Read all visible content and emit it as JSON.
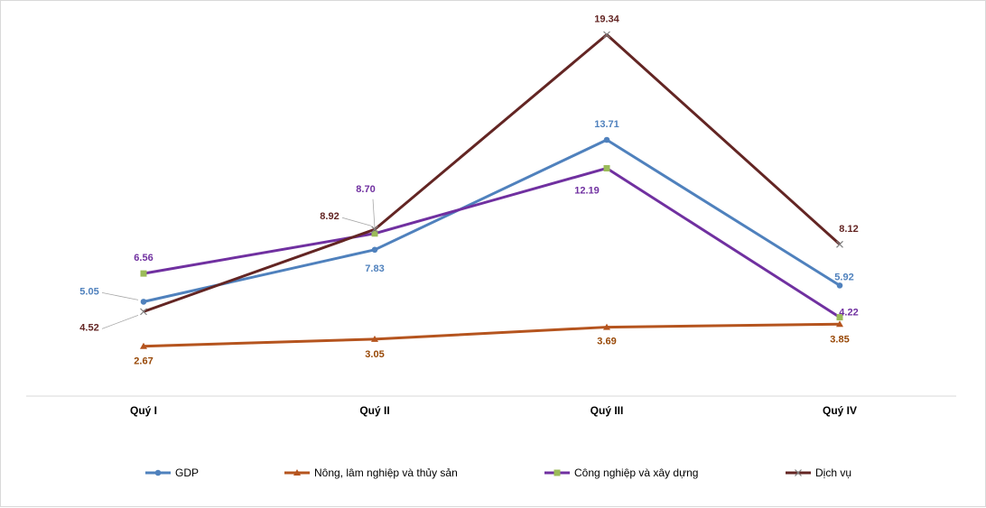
{
  "chart_data": {
    "type": "line",
    "title": "",
    "xlabel": "",
    "ylabel": "",
    "categories": [
      "Quý I",
      "Quý II",
      "Quý III",
      "Quý IV"
    ],
    "ylim": [
      0,
      21
    ],
    "grid": false,
    "legend_position": "bottom",
    "series": [
      {
        "name": "GDP",
        "values": [
          5.05,
          7.83,
          13.71,
          5.92
        ],
        "labels": [
          "5.05",
          "7.83",
          "13.71",
          "5.92"
        ],
        "color": "#4f81bd",
        "marker": "circle"
      },
      {
        "name": "Nông, lâm nghiệp và thủy sản",
        "values": [
          2.67,
          3.05,
          3.69,
          3.85
        ],
        "labels": [
          "2.67",
          "3.05",
          "3.69",
          "3.85"
        ],
        "color": "#b5541e",
        "label_color": "#984807",
        "marker": "triangle"
      },
      {
        "name": "Công nghiệp và xây dựng",
        "values": [
          6.56,
          8.7,
          12.19,
          4.22
        ],
        "labels": [
          "6.56",
          "8.70",
          "12.19",
          "4.22"
        ],
        "color": "#7030a0",
        "marker_color": "#9bbb59",
        "marker": "square"
      },
      {
        "name": "Dịch vụ",
        "values": [
          4.52,
          8.92,
          19.34,
          8.12
        ],
        "labels": [
          "4.52",
          "8.92",
          "19.34",
          "8.12"
        ],
        "color": "#632523",
        "marker": "x"
      }
    ]
  }
}
